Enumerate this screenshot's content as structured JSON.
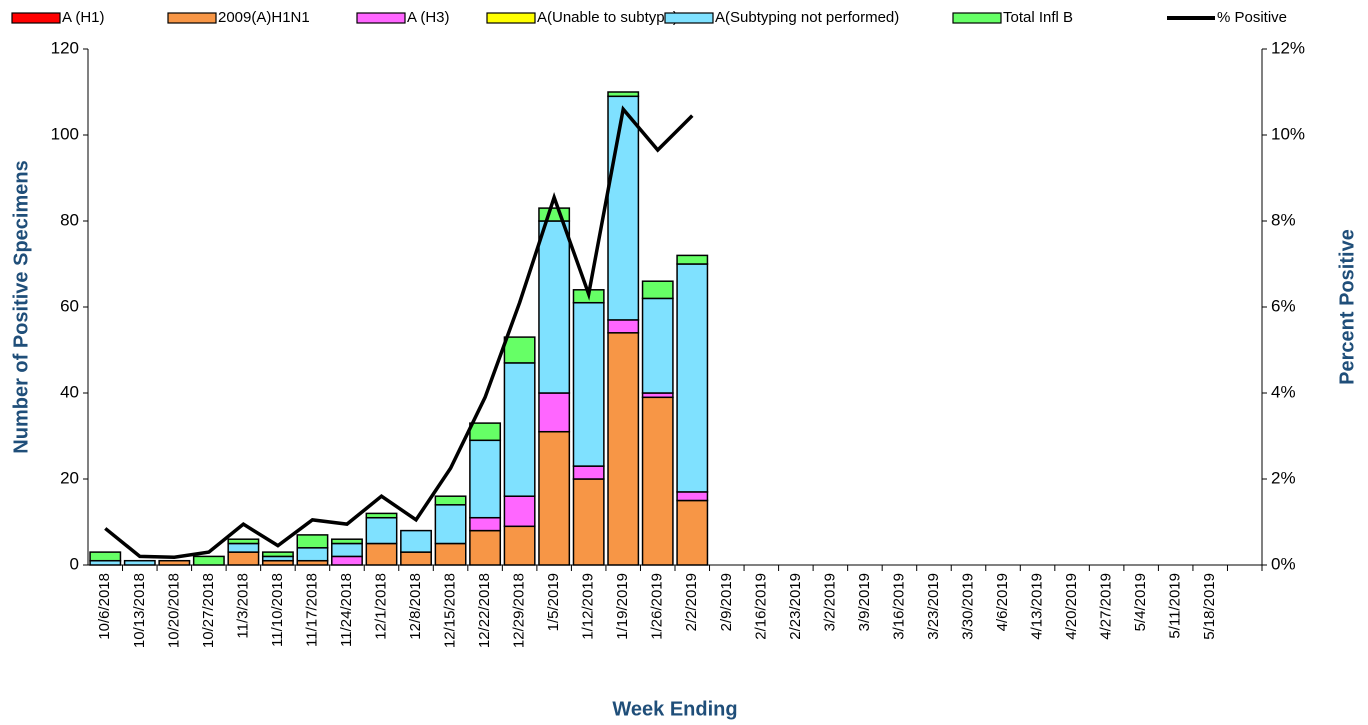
{
  "chart_data": {
    "type": "bar",
    "x_label": "Week Ending",
    "y_label": "Number of  Positive Specimens",
    "y2_label": "Percent Positive",
    "stacked": true,
    "categories": [
      "10/6/2018",
      "10/13/2018",
      "10/20/2018",
      "10/27/2018",
      "11/3/2018",
      "11/10/2018",
      "11/17/2018",
      "11/24/2018",
      "12/1/2018",
      "12/8/2018",
      "12/15/2018",
      "12/22/2018",
      "12/29/2018",
      "1/5/2019",
      "1/12/2019",
      "1/19/2019",
      "1/26/2019",
      "2/2/2019",
      "2/9/2019",
      "2/16/2019",
      "2/23/2019",
      "3/2/2019",
      "3/9/2019",
      "3/16/2019",
      "3/23/2019",
      "3/30/2019",
      "4/6/2019",
      "4/13/2019",
      "4/20/2019",
      "4/27/2019",
      "5/4/2019",
      "5/11/2019",
      "5/18/2019",
      null
    ],
    "ylim": [
      0,
      120
    ],
    "yticks": [
      0,
      20,
      40,
      60,
      80,
      100,
      120
    ],
    "y2lim": [
      0,
      12
    ],
    "y2ticks": [
      {
        "value": 0,
        "label": "0%"
      },
      {
        "value": 2,
        "label": "2%"
      },
      {
        "value": 4,
        "label": "4%"
      },
      {
        "value": 6,
        "label": "6%"
      },
      {
        "value": 8,
        "label": "8%"
      },
      {
        "value": 10,
        "label": "10%"
      },
      {
        "value": 12,
        "label": "12%"
      }
    ],
    "series": [
      {
        "name": "A (H1)",
        "color": "#ff0000",
        "values": [
          0,
          0,
          0,
          0,
          0,
          0,
          0,
          0,
          0,
          0,
          0,
          0,
          0,
          0,
          0,
          0,
          0,
          0,
          null,
          null,
          null,
          null,
          null,
          null,
          null,
          null,
          null,
          null,
          null,
          null,
          null,
          null,
          null,
          null
        ]
      },
      {
        "name": "2009(A)H1N1",
        "color": "#f79646",
        "values": [
          0,
          0,
          1,
          0,
          3,
          1,
          1,
          0,
          5,
          3,
          5,
          8,
          9,
          31,
          20,
          54,
          39,
          15,
          null,
          null,
          null,
          null,
          null,
          null,
          null,
          null,
          null,
          null,
          null,
          null,
          null,
          null,
          null,
          null
        ]
      },
      {
        "name": "A (H3)",
        "color": "#ff66ff",
        "values": [
          0,
          0,
          0,
          0,
          0,
          0,
          0,
          2,
          0,
          0,
          0,
          3,
          7,
          9,
          3,
          3,
          1,
          2,
          null,
          null,
          null,
          null,
          null,
          null,
          null,
          null,
          null,
          null,
          null,
          null,
          null,
          null,
          null,
          null
        ]
      },
      {
        "name": "A(Unable to subtype)",
        "color": "#ffff00",
        "values": [
          0,
          0,
          0,
          0,
          0,
          0,
          0,
          0,
          0,
          0,
          0,
          0,
          0,
          0,
          0,
          0,
          0,
          0,
          null,
          null,
          null,
          null,
          null,
          null,
          null,
          null,
          null,
          null,
          null,
          null,
          null,
          null,
          null,
          null
        ]
      },
      {
        "name": "A(Subtyping not performed)",
        "color": "#7fe1ff",
        "values": [
          1,
          1,
          0,
          0,
          2,
          1,
          3,
          3,
          6,
          5,
          9,
          18,
          31,
          40,
          38,
          52,
          22,
          53,
          null,
          null,
          null,
          null,
          null,
          null,
          null,
          null,
          null,
          null,
          null,
          null,
          null,
          null,
          null,
          null
        ]
      },
      {
        "name": "Total Infl B",
        "color": "#66ff66",
        "values": [
          2,
          0,
          0,
          2,
          1,
          1,
          3,
          1,
          1,
          0,
          2,
          4,
          6,
          3,
          3,
          1,
          4,
          2,
          null,
          null,
          null,
          null,
          null,
          null,
          null,
          null,
          null,
          null,
          null,
          null,
          null,
          null,
          null,
          null
        ]
      },
      {
        "name": "% Positive",
        "color": "#000000",
        "axis": "y2",
        "type": "line",
        "values": [
          0.85,
          0.2,
          0.18,
          0.3,
          0.95,
          0.45,
          1.05,
          0.95,
          1.6,
          1.05,
          2.25,
          3.9,
          6.1,
          8.55,
          6.3,
          10.6,
          9.65,
          10.45,
          null,
          null,
          null,
          null,
          null,
          null,
          null,
          null,
          null,
          null,
          null,
          null,
          null,
          null,
          null,
          null
        ]
      }
    ]
  }
}
